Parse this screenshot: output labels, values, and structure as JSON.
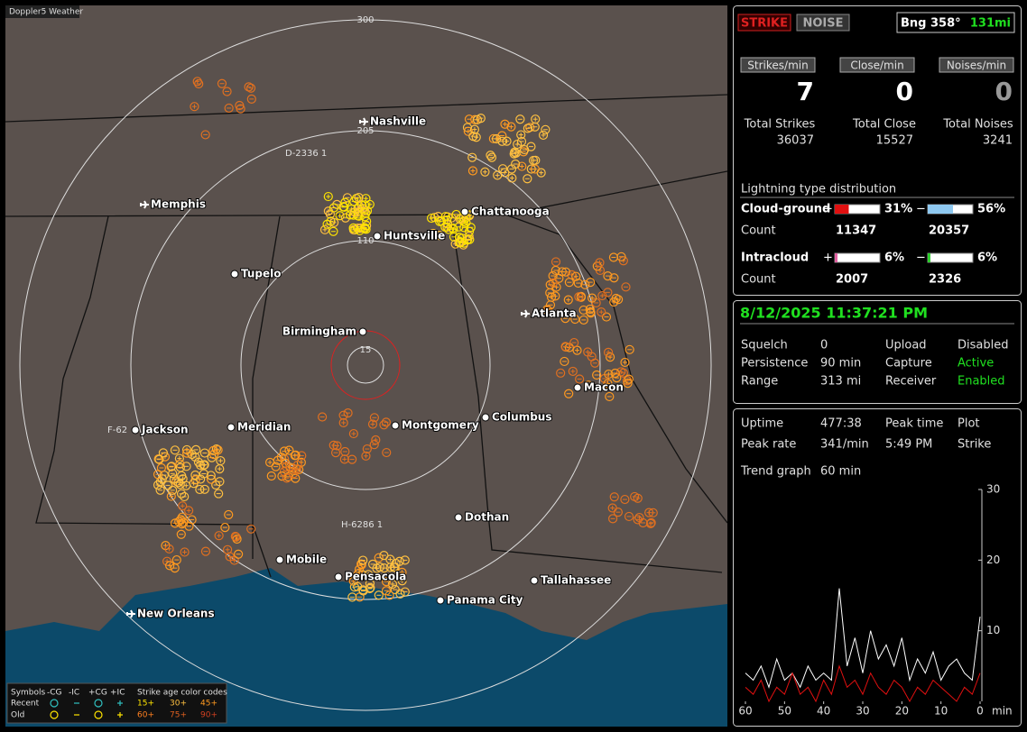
{
  "map": {
    "title": "Doppler5 Weather",
    "rings": [
      "300",
      "205",
      "110",
      "15"
    ],
    "cities": [
      "Nashville",
      "Memphis",
      "Chattanooga",
      "Huntsville",
      "Tupelo",
      "Atlanta",
      "Birmingham",
      "Macon",
      "Jackson",
      "Meridian",
      "Montgomery",
      "Columbus",
      "Dothan",
      "Mobile",
      "Pensacola",
      "Tallahassee",
      "Panama City",
      "New Orleans"
    ],
    "tags": [
      "D-2336 1",
      "F-62",
      "H-6286 1"
    ],
    "legend": {
      "symbols": "Symbols",
      "headers": [
        "-CG",
        "-IC",
        "+CG",
        "+IC"
      ],
      "age_title": "Strike age color codes",
      "rows": [
        {
          "label": "Recent",
          "ages": [
            "15+",
            "30+",
            "45+"
          ]
        },
        {
          "label": "Old",
          "ages": [
            "60+",
            "75+",
            "90+"
          ]
        }
      ]
    }
  },
  "controls": {
    "buttons": [
      "STRIKE",
      "NOISE"
    ],
    "bearing": "Bng 358°",
    "distance": "131mi"
  },
  "rates": [
    {
      "label": "Strikes/min",
      "value": "7"
    },
    {
      "label": "Close/min",
      "value": "0"
    },
    {
      "label": "Noises/min",
      "value": "0"
    }
  ],
  "totals": [
    {
      "label": "Total Strikes",
      "value": "36037"
    },
    {
      "label": "Total Close",
      "value": "15527"
    },
    {
      "label": "Total Noises",
      "value": "3241"
    }
  ],
  "distribution": {
    "title": "Lightning type distribution",
    "count_label": "Count",
    "rows": [
      {
        "name": "Cloud-ground",
        "positive": {
          "sign": "+",
          "color": "#e01010",
          "percent": {
            "value": 31,
            "label": "31%"
          },
          "count": "11347"
        },
        "negative": {
          "sign": "−",
          "color": "#8ec8f0",
          "percent": {
            "value": 56,
            "label": "56%"
          },
          "count": "20357"
        }
      },
      {
        "name": "Intracloud",
        "positive": {
          "sign": "+",
          "color": "#e060a0",
          "percent": {
            "value": 6,
            "label": "6%"
          },
          "count": "2007"
        },
        "negative": {
          "sign": "−",
          "color": "#30d030",
          "percent": {
            "value": 6,
            "label": "6%"
          },
          "count": "2326"
        }
      }
    ]
  },
  "status": {
    "datetime": "8/12/2025 11:37:21 PM",
    "rows": [
      [
        "Squelch",
        "0",
        "Upload",
        "Disabled"
      ],
      [
        "Persistence",
        "90 min",
        "Capture",
        "Active"
      ],
      [
        "Range",
        "313 mi",
        "Receiver",
        "Enabled"
      ]
    ]
  },
  "stats": {
    "rows": [
      [
        "Uptime",
        "477:38",
        "Peak time",
        "Plot"
      ],
      [
        "Peak rate",
        "341/min",
        "5:49 PM",
        "Strike"
      ]
    ],
    "trend": [
      "Trend graph",
      "60 min"
    ]
  },
  "chart_data": {
    "type": "line",
    "x_label": "min",
    "x": [
      60,
      58,
      56,
      54,
      52,
      50,
      48,
      46,
      44,
      42,
      40,
      38,
      36,
      34,
      32,
      30,
      28,
      26,
      24,
      22,
      20,
      18,
      16,
      14,
      12,
      10,
      8,
      6,
      4,
      2,
      0
    ],
    "xlim": [
      60,
      0
    ],
    "xticks": [
      60,
      50,
      40,
      30,
      20,
      10,
      0
    ],
    "ylim": [
      0,
      30
    ],
    "yticks": [
      10,
      20,
      30
    ],
    "series": [
      {
        "color": "#ffffff",
        "values": [
          4,
          3,
          5,
          2,
          6,
          3,
          4,
          2,
          5,
          3,
          4,
          3,
          16,
          5,
          9,
          4,
          10,
          6,
          8,
          5,
          9,
          3,
          6,
          4,
          7,
          3,
          5,
          6,
          4,
          3,
          12
        ]
      },
      {
        "color": "#e01010",
        "values": [
          2,
          1,
          3,
          0,
          2,
          1,
          4,
          1,
          2,
          0,
          3,
          1,
          5,
          2,
          3,
          1,
          4,
          2,
          1,
          3,
          2,
          0,
          2,
          1,
          3,
          2,
          1,
          0,
          2,
          1,
          4
        ]
      }
    ]
  }
}
